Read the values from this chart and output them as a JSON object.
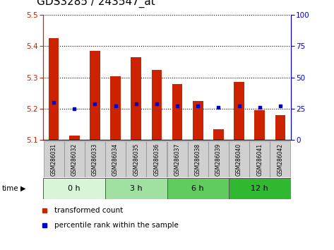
{
  "title": "GDS3285 / 243547_at",
  "samples": [
    "GSM286031",
    "GSM286032",
    "GSM286033",
    "GSM286034",
    "GSM286035",
    "GSM286036",
    "GSM286037",
    "GSM286038",
    "GSM286039",
    "GSM286040",
    "GSM286041",
    "GSM286042"
  ],
  "bar_bottoms": [
    5.1,
    5.1,
    5.1,
    5.1,
    5.1,
    5.1,
    5.1,
    5.1,
    5.1,
    5.1,
    5.1,
    5.1
  ],
  "bar_tops": [
    5.425,
    5.115,
    5.385,
    5.305,
    5.365,
    5.325,
    5.28,
    5.225,
    5.135,
    5.285,
    5.195,
    5.18
  ],
  "percentile_values": [
    5.22,
    5.2,
    5.215,
    5.21,
    5.215,
    5.215,
    5.21,
    5.21,
    5.205,
    5.21,
    5.205,
    5.21
  ],
  "ylim": [
    5.1,
    5.5
  ],
  "yticks": [
    5.1,
    5.2,
    5.3,
    5.4,
    5.5
  ],
  "y2lim": [
    0,
    100
  ],
  "y2ticks": [
    0,
    25,
    50,
    75,
    100
  ],
  "groups": [
    {
      "label": "0 h",
      "start": 0,
      "end": 3,
      "color": "#d8f5d8"
    },
    {
      "label": "3 h",
      "start": 3,
      "end": 6,
      "color": "#a0e0a0"
    },
    {
      "label": "6 h",
      "start": 6,
      "end": 9,
      "color": "#60cc60"
    },
    {
      "label": "12 h",
      "start": 9,
      "end": 12,
      "color": "#30b830"
    }
  ],
  "bar_color": "#cc2200",
  "percentile_color": "#0000cc",
  "grid_color": "#000000",
  "title_fontsize": 11,
  "tick_label_color_left": "#cc2200",
  "tick_label_color_right": "#0000cc",
  "sample_bg_color": "#d0d0d0",
  "time_label": "time"
}
